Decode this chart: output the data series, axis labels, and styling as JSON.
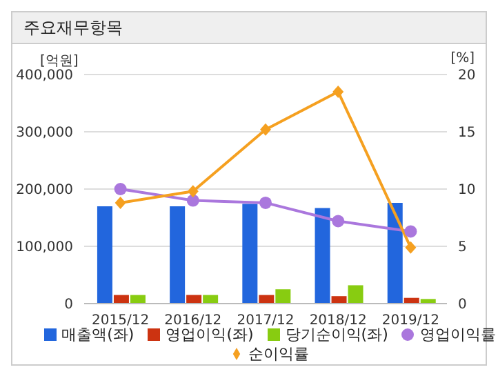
{
  "chart_data": {
    "type": "bar",
    "title": "주요재무항목",
    "ylabel": "[억원]",
    "y2label": "[%]",
    "categories": [
      "2015/12",
      "2016/12",
      "2017/12",
      "2018/12",
      "2019/12"
    ],
    "series": [
      {
        "name": "매출액(좌)",
        "color": "#2266dd",
        "values": [
          170000,
          170000,
          174000,
          167000,
          176000
        ]
      },
      {
        "name": "영업이익(좌)",
        "color": "#cc3311",
        "values": [
          15000,
          15000,
          15000,
          13000,
          10000
        ]
      },
      {
        "name": "당기순이익(좌)",
        "color": "#88cc11",
        "values": [
          15000,
          15000,
          25000,
          32000,
          8000
        ]
      },
      {
        "name": "영업이익률",
        "type": "line",
        "axis": "y2",
        "marker": "circle",
        "color": "#aa77dd",
        "values": [
          10.0,
          9.0,
          8.8,
          7.2,
          6.3
        ]
      },
      {
        "name": "순이익률",
        "type": "line",
        "axis": "y2",
        "marker": "diamond",
        "color": "#f5a020",
        "values": [
          8.8,
          9.8,
          15.2,
          18.5,
          4.9
        ]
      }
    ],
    "ylim": [
      0,
      400000
    ],
    "yticks": [
      0,
      {
        "value": 100000,
        "label": "100,000"
      },
      {
        "value": 200000,
        "label": "200,000"
      },
      {
        "value": 300000,
        "label": "300,000"
      },
      {
        "value": 400000,
        "label": "400,000"
      }
    ],
    "y2lim": [
      0,
      20
    ],
    "y2ticks": [
      0,
      5,
      10,
      15,
      20
    ],
    "grid": "y",
    "legend": "bottom"
  }
}
